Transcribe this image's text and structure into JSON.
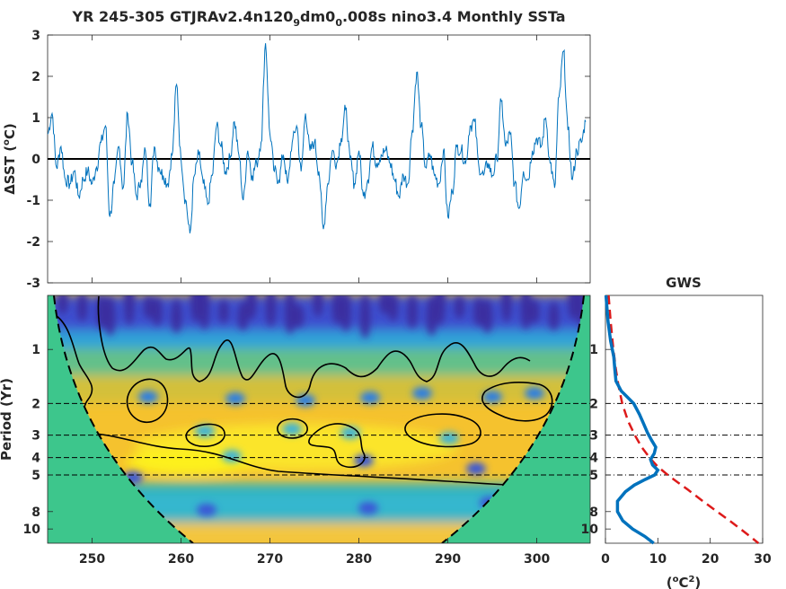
{
  "title": {
    "prefix": "YR 245-305 GTJRAv2.4n120",
    "sub1": "9",
    "mid": "dm0",
    "sub2": "0",
    "suffix": ".008s nino3.4 Monthly SSTa"
  },
  "chart_data": [
    {
      "type": "line",
      "ylabel_prefix": "ΔSST (",
      "ylabel_sup": "o",
      "ylabel_suffix": "C)",
      "xlim": [
        245,
        306
      ],
      "ylim": [
        -3,
        3
      ],
      "yticks": [
        -3,
        -2,
        -1,
        0,
        1,
        2,
        3
      ],
      "xticks": [
        250,
        260,
        270,
        280,
        290,
        300
      ],
      "zero_line": true,
      "colors": {
        "series": "#0072bd",
        "zero": "#000000"
      },
      "series": [
        {
          "x": [
            245.0,
            245.5,
            246.0,
            246.5,
            247.0,
            247.5,
            248.0,
            248.5,
            249.0,
            249.5,
            250.0,
            250.5,
            251.0,
            251.5,
            252.0,
            252.5,
            253.0,
            253.5,
            254.0,
            254.5,
            255.0,
            255.5,
            256.0,
            256.5,
            257.0,
            257.5,
            258.0,
            258.5,
            259.0,
            259.5,
            260.0,
            260.5,
            261.0,
            261.5,
            262.0,
            262.5,
            263.0,
            263.5,
            264.0,
            264.5,
            265.0,
            265.5,
            266.0,
            266.5,
            267.0,
            267.5,
            268.0,
            268.5,
            269.0,
            269.5,
            270.0,
            270.5,
            271.0,
            271.5,
            272.0,
            272.5,
            273.0,
            273.5,
            274.0,
            274.5,
            275.0,
            275.5,
            276.0,
            276.5,
            277.0,
            277.5,
            278.0,
            278.5,
            279.0,
            279.5,
            280.0,
            280.5,
            281.0,
            281.5,
            282.0,
            282.5,
            283.0,
            283.5,
            284.0,
            284.5,
            285.0,
            285.5,
            286.0,
            286.5,
            287.0,
            287.5,
            288.0,
            288.5,
            289.0,
            289.5,
            290.0,
            290.5,
            291.0,
            291.5,
            292.0,
            292.5,
            293.0,
            293.5,
            294.0,
            294.5,
            295.0,
            295.5,
            296.0,
            296.5,
            297.0,
            297.5,
            298.0,
            298.5,
            299.0,
            299.5,
            300.0,
            300.5,
            301.0,
            301.5,
            302.0,
            302.5,
            303.0,
            303.5,
            304.0,
            304.5,
            305.0,
            305.5
          ],
          "values": [
            0.6,
            1.1,
            -0.2,
            0.3,
            -0.5,
            -0.6,
            -0.3,
            -0.9,
            -0.5,
            -0.3,
            -0.6,
            -0.2,
            0.4,
            0.8,
            -1.4,
            -0.6,
            0.3,
            -0.7,
            1.1,
            -0.1,
            -0.9,
            -0.5,
            0.2,
            -1.1,
            0.3,
            -0.2,
            -0.4,
            -0.6,
            0.1,
            1.8,
            0.0,
            -1.0,
            -1.8,
            -0.4,
            0.1,
            -0.6,
            -1.1,
            -0.4,
            0.8,
            0.3,
            -0.3,
            0.0,
            0.9,
            0.1,
            -1.0,
            0.2,
            -0.4,
            -0.1,
            0.4,
            2.8,
            0.6,
            -0.3,
            -0.5,
            0.1,
            -0.6,
            0.4,
            0.8,
            -0.3,
            1.1,
            0.2,
            0.4,
            -0.3,
            -1.7,
            -0.6,
            0.2,
            -0.1,
            0.5,
            1.2,
            0.0,
            -0.6,
            0.2,
            -0.9,
            -0.5,
            0.3,
            -0.1,
            0.1,
            0.2,
            -0.1,
            -0.5,
            -0.9,
            -0.4,
            -0.6,
            0.7,
            2.1,
            0.8,
            -0.2,
            0.1,
            -0.4,
            -0.6,
            0.2,
            -1.4,
            -0.8,
            0.3,
            0.2,
            -0.1,
            0.8,
            0.9,
            -0.2,
            -0.4,
            -0.1,
            -0.4,
            0.0,
            1.4,
            0.3,
            0.6,
            -0.6,
            -1.2,
            -0.3,
            -0.5,
            0.2,
            0.5,
            0.3,
            1.0,
            -0.1,
            -0.7,
            1.5,
            2.6,
            0.7,
            -0.5,
            0.2,
            0.4,
            0.9
          ]
        }
      ]
    },
    {
      "type": "heatmap",
      "ylabel": "Period (Yr)",
      "xlim": [
        245,
        306
      ],
      "ylim": [
        0.5,
        12
      ],
      "yscale": "log",
      "xticks": [
        250,
        260,
        270,
        280,
        290,
        300
      ],
      "yticks": [
        1,
        2,
        3,
        4,
        5,
        8,
        10
      ],
      "ref_periods": [
        2,
        3,
        4,
        5
      ],
      "colormap": "parula",
      "cone_of_influence": true,
      "contours": "black, 95% significance"
    },
    {
      "type": "line",
      "title": "GWS",
      "xlabel_prefix": "(",
      "xlabel_sup1": "o",
      "xlabel_mid": "C",
      "xlabel_sup2": "2",
      "xlabel_suffix": ")",
      "xlim": [
        0,
        30
      ],
      "xticks": [
        0,
        10,
        20,
        30
      ],
      "yscale": "log",
      "yticks": [
        1,
        2,
        3,
        4,
        5,
        8,
        10
      ],
      "ref_periods": [
        2,
        3,
        4,
        5
      ],
      "colors": {
        "spectrum": "#0072bd",
        "significance": "#dd1a1a"
      },
      "series": [
        {
          "period": [
            0.5,
            0.7,
            0.9,
            1.1,
            1.3,
            1.5,
            1.7,
            2.0,
            2.3,
            2.6,
            2.9,
            3.2,
            3.5,
            3.8,
            4.1,
            4.4,
            4.7,
            5.0,
            5.3,
            5.7,
            6.2,
            7.0,
            8.0,
            9.0,
            10.0,
            11.0,
            12.0
          ],
          "values": [
            0.1,
            0.5,
            1.0,
            1.6,
            1.8,
            2.0,
            3.0,
            5.4,
            6.5,
            7.3,
            8.0,
            8.8,
            9.6,
            9.3,
            8.6,
            9.0,
            10.0,
            9.4,
            7.6,
            5.5,
            3.8,
            2.3,
            2.3,
            3.3,
            5.2,
            7.5,
            9.2
          ]
        },
        {
          "period": [
            0.5,
            0.7,
            1.0,
            1.3,
            1.6,
            2.0,
            2.5,
            3.0,
            3.5,
            4.0,
            4.5,
            5.0,
            5.5,
            6.0,
            7.0,
            8.0,
            9.0,
            10.0,
            11.0,
            12.0
          ],
          "values": [
            0.6,
            1.0,
            1.5,
            2.0,
            2.5,
            3.2,
            4.3,
            5.6,
            6.9,
            8.4,
            10.0,
            11.9,
            13.8,
            15.6,
            18.6,
            21.3,
            23.7,
            25.8,
            27.6,
            29.2
          ]
        }
      ]
    }
  ]
}
